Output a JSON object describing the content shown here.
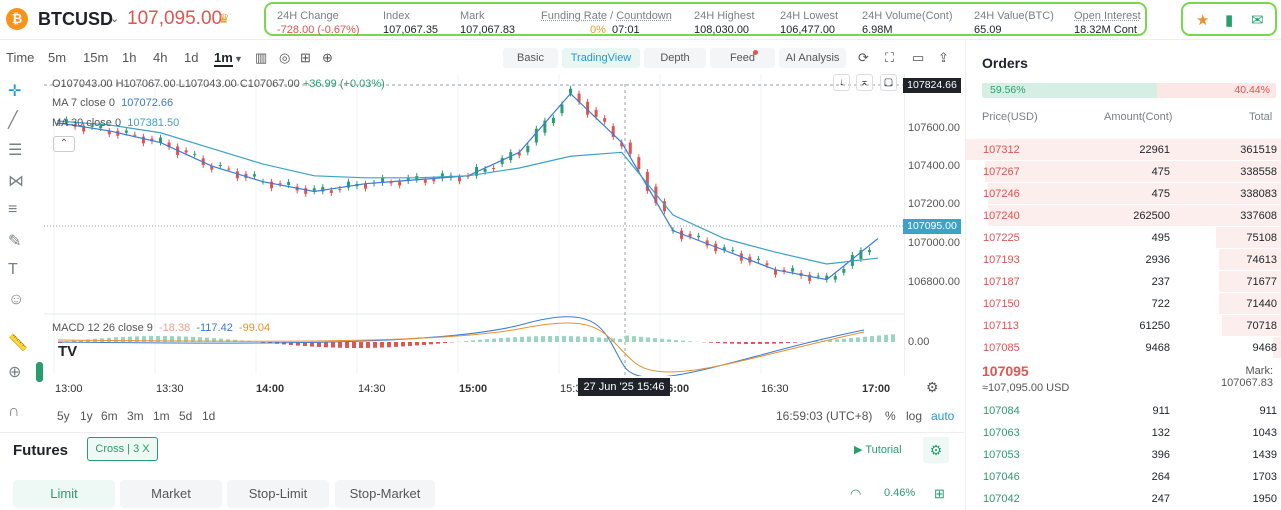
{
  "header": {
    "logo": "₿",
    "symbol": "BTCUSD",
    "price": "107,095.00",
    "trophy_icon": "trophy-icon",
    "stats": [
      {
        "label": "24H Change",
        "value": "-728.00 (-0.67%)",
        "red": true
      },
      {
        "label": "Index",
        "value": "107,067.35"
      },
      {
        "label": "Mark",
        "value": "107,067.83"
      },
      {
        "label": "Funding Rate",
        "label2": "Countdown",
        "value": "0%",
        "value2": "07:01"
      },
      {
        "label": "24H Highest",
        "value": "108,030.00"
      },
      {
        "label": "24H Lowest",
        "value": "106,477.00"
      },
      {
        "label": "24H Volume(Cont)",
        "value": "6.98M"
      },
      {
        "label": "24H Value(BTC)",
        "value": "65.09"
      },
      {
        "label": "Open Interest",
        "value": "18.32M Cont"
      }
    ]
  },
  "toolbar": {
    "time_label": "Time",
    "tfs": [
      "5m",
      "15m",
      "1h",
      "4h",
      "1d",
      "1m"
    ],
    "views": [
      "Basic",
      "TradingView",
      "Depth",
      "Feed",
      "AI Analysis"
    ],
    "active_view": "TradingView"
  },
  "chart": {
    "ohlc": {
      "o": "O107043.00",
      "h": "H107067.00",
      "l": "L107043.00",
      "c": "C107067.00",
      "chg": "+36.99 (+0.03%)"
    },
    "ma7": {
      "label": "MA 7 close 0",
      "value": "107072.66"
    },
    "ma30": {
      "label": "MA 30 close 0",
      "value": "107381.50"
    },
    "macd": {
      "label": "MACD 12 26 close 9",
      "v1": "-18.38",
      "v2": "-117.42",
      "v3": "-99.04"
    },
    "yticks": [
      "107600.00",
      "107400.00",
      "107200.00",
      "107000.00",
      "106800.00",
      "0.00"
    ],
    "crosshair_price": "107824.66",
    "last_price": "107095.00",
    "xticks": [
      "13:00",
      "13:30",
      "14:00",
      "14:30",
      "15:00",
      "15:3",
      "16:00",
      "16:30",
      "17:00"
    ],
    "crosshair_time": "27 Jun '25  15:46"
  },
  "chart_data": {
    "type": "line",
    "title": "",
    "xlabel": "",
    "ylabel": "",
    "x": [
      "13:00",
      "13:15",
      "13:30",
      "13:45",
      "14:00",
      "14:15",
      "14:30",
      "14:45",
      "15:00",
      "15:15",
      "15:30",
      "15:45",
      "16:00",
      "16:15",
      "16:30",
      "16:45",
      "17:00"
    ],
    "series": [
      {
        "name": "MA 7",
        "values": [
          107650,
          107610,
          107550,
          107430,
          107350,
          107300,
          107340,
          107360,
          107380,
          107500,
          107800,
          107550,
          107100,
          107000,
          106900,
          106850,
          107060
        ]
      },
      {
        "name": "MA 30",
        "values": [
          107660,
          107640,
          107600,
          107520,
          107440,
          107380,
          107370,
          107370,
          107380,
          107420,
          107480,
          107500,
          107180,
          107060,
          106990,
          106930,
          106960
        ]
      }
    ],
    "ylim": [
      106700,
      107900
    ]
  },
  "bottombar": {
    "ranges": [
      "5y",
      "1y",
      "6m",
      "3m",
      "1m",
      "5d",
      "1d"
    ],
    "clock": "16:59:03 (UTC+8)",
    "pct": "%",
    "log": "log",
    "auto": "auto"
  },
  "futures": {
    "title": "Futures",
    "cross": "Cross",
    "lev": "3 X",
    "tutorial": "Tutorial",
    "tabs": [
      "Limit",
      "Market",
      "Stop-Limit",
      "Stop-Market"
    ],
    "ratio": "0.46%"
  },
  "orders": {
    "title": "Orders",
    "buy_pct": "59.56%",
    "sell_pct": "40.44%",
    "cols": [
      "Price(USD)",
      "Amount(Cont)",
      "Total"
    ],
    "asks": [
      [
        "107312",
        "22961",
        "361519",
        1.0
      ],
      [
        "107267",
        "475",
        "338558",
        0.94
      ],
      [
        "107246",
        "475",
        "338083",
        0.93
      ],
      [
        "107240",
        "262500",
        "337608",
        0.93
      ],
      [
        "107225",
        "495",
        "75108",
        0.21
      ],
      [
        "107193",
        "2936",
        "74613",
        0.2
      ],
      [
        "107187",
        "237",
        "71677",
        0.2
      ],
      [
        "107150",
        "722",
        "71440",
        0.2
      ],
      [
        "107113",
        "61250",
        "70718",
        0.19
      ],
      [
        "107085",
        "9468",
        "9468",
        0.03
      ]
    ],
    "mid": "107095",
    "mid_sub": "≈107,095.00 USD",
    "mark_label": "Mark:",
    "mark": "107067.83",
    "bids": [
      [
        "107084",
        "911",
        "911"
      ],
      [
        "107063",
        "132",
        "1043"
      ],
      [
        "107053",
        "396",
        "1439"
      ],
      [
        "107046",
        "264",
        "1703"
      ],
      [
        "107042",
        "247",
        "1950"
      ]
    ]
  }
}
